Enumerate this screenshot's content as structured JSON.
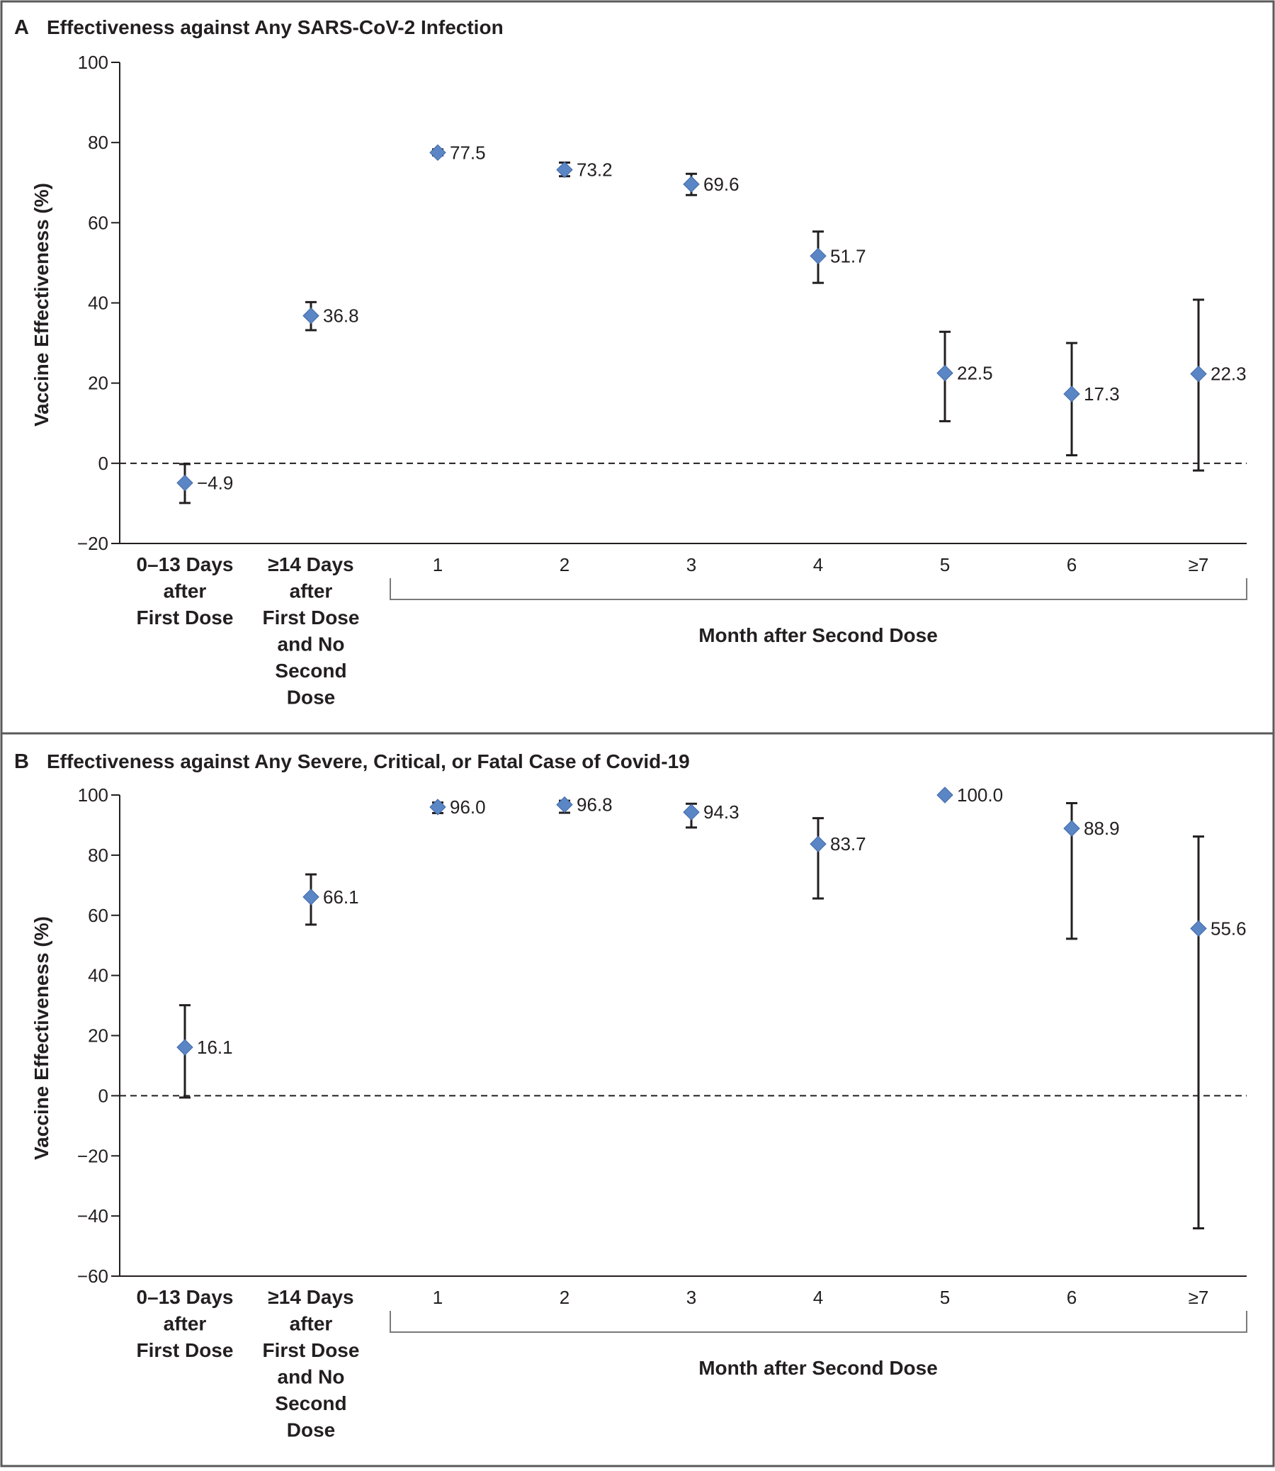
{
  "colors": {
    "frame": "#5a5a5a",
    "axis": "#231f20",
    "marker": "#5b86c5",
    "marker_stroke": "#3f68a8",
    "errorbar": "#231f20",
    "bracket": "#7a7a7a"
  },
  "chart_data": [
    {
      "type": "scatter",
      "panel": "A",
      "title": "Effectiveness against Any SARS-CoV-2 Infection",
      "ylabel": "Vaccine Effectiveness (%)",
      "ylim": [
        -20,
        100
      ],
      "yticks": [
        -20,
        0,
        20,
        40,
        60,
        80,
        100
      ],
      "reference_line": 0,
      "categories": [
        "0–13 Days after First Dose",
        "≥14 Days after First Dose and No Second Dose",
        "1",
        "2",
        "3",
        "4",
        "5",
        "6",
        "≥7"
      ],
      "category_lines": [
        [
          "0–13 Days",
          "after",
          "First Dose"
        ],
        [
          "≥14 Days",
          "after",
          "First Dose",
          "and No",
          "Second",
          "Dose"
        ]
      ],
      "month_labels": [
        "1",
        "2",
        "3",
        "4",
        "5",
        "6",
        "≥7"
      ],
      "group_label": "Month after Second Dose",
      "values": [
        -4.9,
        36.8,
        77.5,
        73.2,
        69.6,
        51.7,
        22.5,
        17.3,
        22.3
      ],
      "value_labels": [
        "−4.9",
        "36.8",
        "77.5",
        "73.2",
        "69.6",
        "51.7",
        "22.5",
        "17.3",
        "22.3"
      ],
      "ci_low": [
        -9.9,
        33.2,
        76.8,
        71.6,
        66.9,
        45.0,
        10.5,
        2.0,
        -1.8
      ],
      "ci_high": [
        -0.2,
        40.2,
        78.3,
        75.0,
        72.2,
        57.8,
        32.8,
        30.0,
        40.8
      ]
    },
    {
      "type": "scatter",
      "panel": "B",
      "title": "Effectiveness against Any Severe, Critical, or Fatal Case of Covid-19",
      "ylabel": "Vaccine Effectiveness (%)",
      "ylim": [
        -60,
        100
      ],
      "yticks": [
        -60,
        -40,
        -20,
        0,
        20,
        40,
        60,
        80,
        100
      ],
      "reference_line": 0,
      "categories": [
        "0–13 Days after First Dose",
        "≥14 Days after First Dose and No Second Dose",
        "1",
        "2",
        "3",
        "4",
        "5",
        "6",
        "≥7"
      ],
      "category_lines": [
        [
          "0–13 Days",
          "after",
          "First Dose"
        ],
        [
          "≥14 Days",
          "after",
          "First Dose",
          "and No",
          "Second",
          "Dose"
        ]
      ],
      "month_labels": [
        "1",
        "2",
        "3",
        "4",
        "5",
        "6",
        "≥7"
      ],
      "group_label": "Month after Second Dose",
      "values": [
        16.1,
        66.1,
        96.0,
        96.8,
        94.3,
        83.7,
        100.0,
        88.9,
        55.6
      ],
      "value_labels": [
        "16.1",
        "66.1",
        "96.0",
        "96.8",
        "94.3",
        "83.7",
        "100.0",
        "88.9",
        "55.6"
      ],
      "ci_low": [
        -0.6,
        56.9,
        94.0,
        94.1,
        89.2,
        65.6,
        100.0,
        52.2,
        -44.1
      ],
      "ci_high": [
        30.1,
        73.6,
        97.5,
        98.1,
        97.1,
        92.3,
        100.0,
        97.3,
        86.2
      ]
    }
  ]
}
